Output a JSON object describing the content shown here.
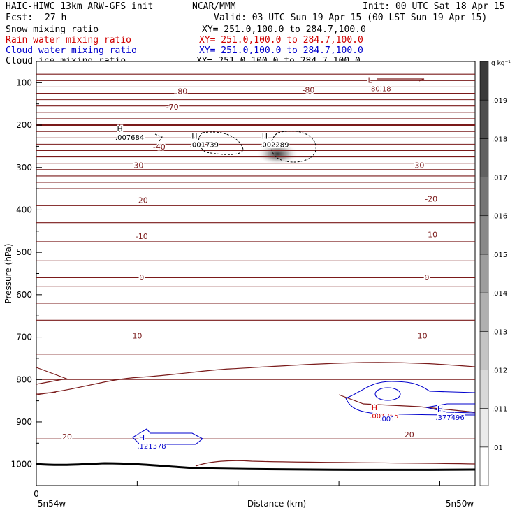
{
  "header": {
    "title": "HAIC-HIWC 13km ARW-GFS init",
    "org": "NCAR/MMM",
    "init": "Init: 00 UTC Sat 18 Apr 15",
    "fcst_label": "Fcst:",
    "fcst_value": "27 h",
    "valid": "Valid: 03 UTC Sun 19 Apr 15 (00 LST Sun 19 Apr 15)",
    "fields": [
      {
        "name": "Snow mixing ratio",
        "xy": "XY= 251.0,100.0 to 284.7,100.0",
        "color": "#000000"
      },
      {
        "name": "Rain water mixing ratio",
        "xy": "XY= 251.0,100.0 to 284.7,100.0",
        "color": "#d00000"
      },
      {
        "name": "Cloud water mixing ratio",
        "xy": "XY= 251.0,100.0 to 284.7,100.0",
        "color": "#0000cc"
      },
      {
        "name": "Cloud ice mixing ratio",
        "xy": "XY= 251.0,100.0 to 284.7,100.0",
        "color": "#000000"
      }
    ]
  },
  "chart_data": {
    "type": "contour",
    "xlabel": "Distance (km)",
    "ylabel": "Pressure (hPa)",
    "ylim": [
      1050,
      50
    ],
    "yticks": [
      100,
      200,
      300,
      400,
      500,
      600,
      700,
      800,
      900,
      1000
    ],
    "x_start_value": "0",
    "x_left_label": "5n54w",
    "x_right_label": "5n50w",
    "isotherm_color": "#7a1a1a",
    "isotherm_labels": [
      {
        "text": "-80",
        "x": 0.33,
        "p": 120
      },
      {
        "text": "-80",
        "x": 0.62,
        "p": 117
      },
      {
        "text": "-70",
        "x": 0.31,
        "p": 157
      },
      {
        "text": "-40",
        "x": 0.28,
        "p": 251
      },
      {
        "text": "-30",
        "x": 0.23,
        "p": 295
      },
      {
        "text": "-30",
        "x": 0.87,
        "p": 295
      },
      {
        "text": "-20",
        "x": 0.24,
        "p": 377
      },
      {
        "text": "-20",
        "x": 0.9,
        "p": 374
      },
      {
        "text": "-10",
        "x": 0.24,
        "p": 462
      },
      {
        "text": "-10",
        "x": 0.9,
        "p": 458
      },
      {
        "text": "0",
        "x": 0.24,
        "p": 559
      },
      {
        "text": "0",
        "x": 0.89,
        "p": 559
      },
      {
        "text": "10",
        "x": 0.23,
        "p": 697
      },
      {
        "text": "10",
        "x": 0.88,
        "p": 697
      },
      {
        "text": "20",
        "x": 0.07,
        "p": 935
      },
      {
        "text": "20",
        "x": 0.85,
        "p": 930
      }
    ],
    "extrema": [
      {
        "kind": "L",
        "value": "-80.18",
        "x": 0.77,
        "p": 110,
        "color": "#7a1a1a"
      },
      {
        "kind": "H",
        "value": ".007684",
        "x": 0.2,
        "p": 225,
        "color": "#000000"
      },
      {
        "kind": "H",
        "value": ".001739",
        "x": 0.37,
        "p": 242,
        "color": "#000000"
      },
      {
        "kind": "H",
        "value": ".002289",
        "x": 0.53,
        "p": 242,
        "color": "#000000"
      },
      {
        "kind": "H",
        "value": ".001265",
        "x": 0.78,
        "p": 882,
        "color": "#d00000"
      },
      {
        "kind": "H",
        "value": ".377496",
        "x": 0.93,
        "p": 885,
        "color": "#0000cc"
      },
      {
        "kind": "H",
        "value": ".121378",
        "x": 0.25,
        "p": 953,
        "color": "#0000cc"
      }
    ],
    "cloud_contour_labels": [
      {
        "text": ".001",
        "x": 0.8,
        "p": 892,
        "color": "#0000cc"
      }
    ],
    "colorbar": {
      "unit": "g kg⁻¹",
      "ticks": [
        ".01",
        ".011",
        ".012",
        ".013",
        ".014",
        ".015",
        ".016",
        ".017",
        ".018",
        ".019"
      ],
      "min_color": "#ffffff",
      "max_color": "#3a3a3a"
    },
    "snow_shading_peak": {
      "x": 0.55,
      "p": 268,
      "value_level": 0.018
    }
  }
}
